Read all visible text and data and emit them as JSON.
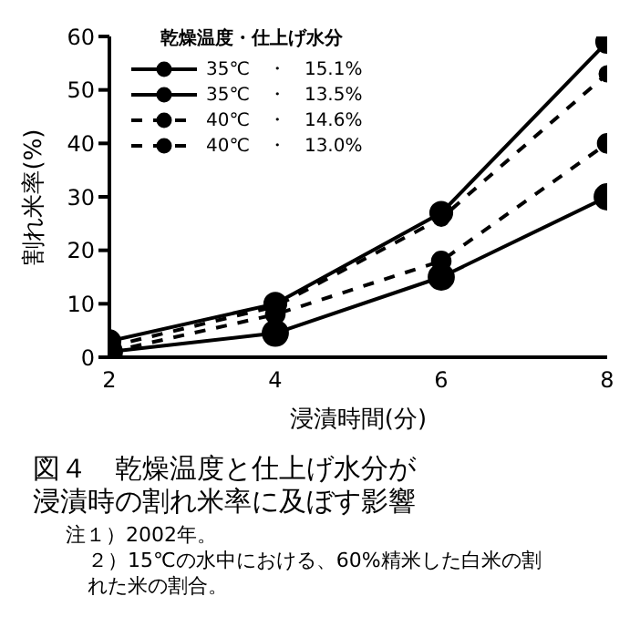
{
  "chart_data": {
    "type": "line",
    "title": "図４　乾燥温度と仕上げ水分が浸漬時の割れ米率に及ぼす影響",
    "xlabel": "浸漬時間(分)",
    "ylabel": "割れ米率(%)",
    "legend_title": "乾燥温度・仕上げ水分",
    "x": [
      2,
      4,
      6,
      8
    ],
    "xlim": [
      2,
      8
    ],
    "xticks": [
      2,
      4,
      6,
      8
    ],
    "ylim": [
      0,
      60
    ],
    "yticks": [
      0,
      10,
      20,
      30,
      40,
      50,
      60
    ],
    "grid": false,
    "legend": "top left",
    "marker": "circle",
    "series": [
      {
        "name": "35℃　・　15.1%",
        "color": "#000000",
        "line_style": "solid",
        "values": [
          1,
          4.5,
          15,
          30
        ]
      },
      {
        "name": "35℃　・　13.5%",
        "color": "#000000",
        "line_style": "solid",
        "values": [
          3,
          10,
          27,
          59
        ]
      },
      {
        "name": "40℃　・　14.6%",
        "color": "#000000",
        "line_style": "dashed",
        "values": [
          1,
          8,
          18,
          40
        ]
      },
      {
        "name": "40℃　・　13.0%",
        "color": "#000000",
        "line_style": "dashed",
        "values": [
          2,
          9.5,
          26,
          53
        ]
      }
    ],
    "annotations": [
      "注１）2002年。",
      "２）15℃の水中における、60%精米した白米の割れた米の割合。"
    ]
  }
}
